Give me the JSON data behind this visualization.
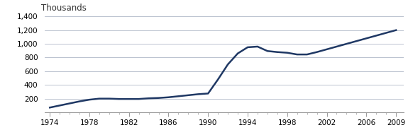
{
  "years": [
    1974,
    1975,
    1976,
    1977,
    1978,
    1979,
    1980,
    1981,
    1982,
    1983,
    1984,
    1985,
    1986,
    1987,
    1988,
    1989,
    1990,
    1991,
    1992,
    1993,
    1994,
    1995,
    1996,
    1997,
    1998,
    1999,
    2000,
    2001,
    2002,
    2003,
    2004,
    2005,
    2006,
    2007,
    2008,
    2009
  ],
  "values": [
    70,
    100,
    130,
    160,
    185,
    200,
    200,
    195,
    195,
    195,
    205,
    210,
    220,
    235,
    250,
    265,
    275,
    480,
    700,
    860,
    950,
    960,
    895,
    880,
    870,
    845,
    845,
    880,
    920,
    960,
    1000,
    1040,
    1080,
    1120,
    1160,
    1200
  ],
  "line_color": "#1f3864",
  "line_width": 1.8,
  "ylabel": "Thousands",
  "ylim": [
    0,
    1400
  ],
  "yticks": [
    0,
    200,
    400,
    600,
    800,
    1000,
    1200,
    1400
  ],
  "ytick_labels": [
    "",
    "200",
    "400",
    "600",
    "800",
    "1,000",
    "1,200",
    "1,400"
  ],
  "xlim": [
    1973.5,
    2009.8
  ],
  "xticks": [
    1974,
    1978,
    1982,
    1986,
    1990,
    1994,
    1998,
    2002,
    2006,
    2009
  ],
  "background_color": "#ffffff",
  "grid_color": "#b0b8c8",
  "tick_label_fontsize": 7.5,
  "ylabel_fontsize": 8.5
}
